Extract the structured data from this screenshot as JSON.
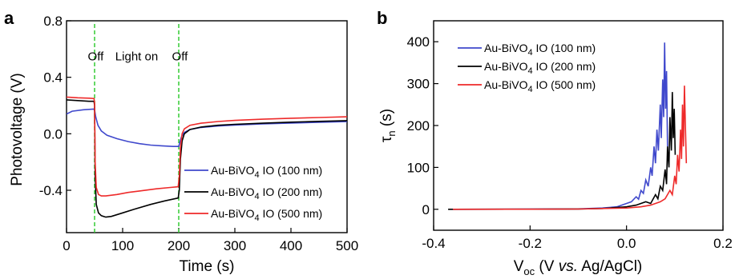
{
  "panels": {
    "a": {
      "letter": "a"
    },
    "b": {
      "letter": "b"
    }
  },
  "chart_data": [
    {
      "type": "line",
      "panel": "a",
      "xlabel": "Time (s)",
      "ylabel": "Photovoltage (V)",
      "xlim": [
        0,
        500
      ],
      "ylim": [
        -0.7,
        0.8
      ],
      "xticks": [
        0,
        100,
        200,
        300,
        400,
        500
      ],
      "yticks": [
        0.8,
        0.4,
        0.0,
        -0.4
      ],
      "ytick_labels": [
        "0.8",
        "0.4",
        "0.0",
        "-0.4"
      ],
      "annotations": [
        {
          "text": "Off",
          "x": 52,
          "y": 0.52
        },
        {
          "text": "Light on",
          "x": 125,
          "y": 0.52
        },
        {
          "text": "Off",
          "x": 202,
          "y": 0.52
        }
      ],
      "vlines": [
        {
          "x": 50,
          "color": "#33cc33",
          "style": "dashed"
        },
        {
          "x": 200,
          "color": "#33cc33",
          "style": "dashed"
        }
      ],
      "legend": {
        "placement": "lower-right"
      },
      "series": [
        {
          "name_main": "Au-BiVO",
          "name_sub": "4",
          "name_rest": " IO (100 nm)",
          "color": "#3f48cc",
          "points": [
            [
              0,
              0.14
            ],
            [
              10,
              0.16
            ],
            [
              30,
              0.17
            ],
            [
              48,
              0.175
            ],
            [
              50,
              0.17
            ],
            [
              52,
              0.12
            ],
            [
              56,
              0.06
            ],
            [
              62,
              0.02
            ],
            [
              72,
              -0.01
            ],
            [
              90,
              -0.035
            ],
            [
              110,
              -0.055
            ],
            [
              130,
              -0.07
            ],
            [
              150,
              -0.08
            ],
            [
              170,
              -0.085
            ],
            [
              190,
              -0.09
            ],
            [
              200,
              -0.09
            ],
            [
              202,
              -0.06
            ],
            [
              205,
              -0.02
            ],
            [
              210,
              0.01
            ],
            [
              220,
              0.03
            ],
            [
              240,
              0.045
            ],
            [
              270,
              0.055
            ],
            [
              300,
              0.062
            ],
            [
              350,
              0.07
            ],
            [
              400,
              0.076
            ],
            [
              450,
              0.081
            ],
            [
              500,
              0.086
            ]
          ]
        },
        {
          "name_main": "Au-BiVO",
          "name_sub": "4",
          "name_rest": " IO (200 nm)",
          "color": "#000000",
          "points": [
            [
              0,
              0.24
            ],
            [
              20,
              0.235
            ],
            [
              40,
              0.23
            ],
            [
              49,
              0.23
            ],
            [
              50,
              0.2
            ],
            [
              51,
              -0.3
            ],
            [
              53,
              -0.5
            ],
            [
              57,
              -0.56
            ],
            [
              62,
              -0.58
            ],
            [
              70,
              -0.59
            ],
            [
              80,
              -0.585
            ],
            [
              100,
              -0.56
            ],
            [
              120,
              -0.535
            ],
            [
              150,
              -0.5
            ],
            [
              175,
              -0.475
            ],
            [
              199,
              -0.455
            ],
            [
              201,
              -0.4
            ],
            [
              203,
              -0.18
            ],
            [
              206,
              -0.05
            ],
            [
              210,
              0.0
            ],
            [
              220,
              0.03
            ],
            [
              240,
              0.048
            ],
            [
              270,
              0.06
            ],
            [
              300,
              0.067
            ],
            [
              350,
              0.075
            ],
            [
              400,
              0.082
            ],
            [
              450,
              0.088
            ],
            [
              500,
              0.093
            ]
          ]
        },
        {
          "name_main": "Au-BiVO",
          "name_sub": "4",
          "name_rest": " IO (500 nm)",
          "color": "#ee2a2a",
          "points": [
            [
              0,
              0.26
            ],
            [
              20,
              0.255
            ],
            [
              40,
              0.252
            ],
            [
              49,
              0.25
            ],
            [
              50,
              0.22
            ],
            [
              51,
              -0.2
            ],
            [
              53,
              -0.38
            ],
            [
              57,
              -0.43
            ],
            [
              62,
              -0.44
            ],
            [
              70,
              -0.44
            ],
            [
              90,
              -0.43
            ],
            [
              110,
              -0.415
            ],
            [
              130,
              -0.405
            ],
            [
              160,
              -0.39
            ],
            [
              185,
              -0.38
            ],
            [
              199,
              -0.375
            ],
            [
              201,
              -0.3
            ],
            [
              203,
              -0.1
            ],
            [
              206,
              0.0
            ],
            [
              210,
              0.035
            ],
            [
              220,
              0.06
            ],
            [
              240,
              0.075
            ],
            [
              270,
              0.087
            ],
            [
              300,
              0.095
            ],
            [
              350,
              0.103
            ],
            [
              400,
              0.11
            ],
            [
              450,
              0.115
            ],
            [
              500,
              0.12
            ]
          ]
        }
      ]
    },
    {
      "type": "line",
      "panel": "b",
      "xlabel_main": "V",
      "xlabel_sub": "oc",
      "xlabel_paren_open": " (V ",
      "xlabel_italic": "vs.",
      "xlabel_rest": " Ag/AgCl)",
      "ylabel_main": "τ",
      "ylabel_sub": "n",
      "ylabel_rest": " (s)",
      "xlim": [
        -0.4,
        0.2
      ],
      "ylim": [
        -50,
        450
      ],
      "xticks": [
        -0.4,
        -0.2,
        0.0,
        0.2
      ],
      "xtick_labels": [
        "-0.4",
        "-0.2",
        "0.0",
        "0.2"
      ],
      "yticks": [
        0,
        100,
        200,
        300,
        400
      ],
      "legend": {
        "placement": "top-left"
      },
      "series": [
        {
          "name_main": "Au-BiVO",
          "name_sub": "4",
          "name_rest": " IO (100 nm)",
          "color": "#3f48cc",
          "points": [
            [
              -0.36,
              0
            ],
            [
              -0.2,
              0.3
            ],
            [
              -0.1,
              1
            ],
            [
              -0.05,
              3
            ],
            [
              -0.02,
              6
            ],
            [
              0.0,
              14
            ],
            [
              0.01,
              18
            ],
            [
              0.02,
              30
            ],
            [
              0.025,
              24
            ],
            [
              0.03,
              45
            ],
            [
              0.035,
              38
            ],
            [
              0.04,
              70
            ],
            [
              0.045,
              55
            ],
            [
              0.05,
              100
            ],
            [
              0.053,
              80
            ],
            [
              0.057,
              150
            ],
            [
              0.06,
              110
            ],
            [
              0.063,
              190
            ],
            [
              0.066,
              140
            ],
            [
              0.07,
              250
            ],
            [
              0.072,
              170
            ],
            [
              0.075,
              310
            ],
            [
              0.077,
              220
            ],
            [
              0.079,
              398
            ],
            [
              0.081,
              240
            ],
            [
              0.083,
              330
            ],
            [
              0.085,
              150
            ]
          ]
        },
        {
          "name_main": "Au-BiVO",
          "name_sub": "4",
          "name_rest": " IO (200 nm)",
          "color": "#000000",
          "points": [
            [
              -0.37,
              0
            ],
            [
              -0.2,
              0.2
            ],
            [
              -0.1,
              0.8
            ],
            [
              -0.05,
              2
            ],
            [
              0.0,
              6
            ],
            [
              0.02,
              10
            ],
            [
              0.04,
              18
            ],
            [
              0.05,
              14
            ],
            [
              0.06,
              35
            ],
            [
              0.065,
              25
            ],
            [
              0.07,
              55
            ],
            [
              0.075,
              45
            ],
            [
              0.08,
              95
            ],
            [
              0.083,
              60
            ],
            [
              0.085,
              150
            ],
            [
              0.088,
              100
            ],
            [
              0.09,
              220
            ],
            [
              0.093,
              140
            ],
            [
              0.095,
              280
            ],
            [
              0.097,
              170
            ],
            [
              0.099,
              240
            ],
            [
              0.101,
              130
            ]
          ]
        },
        {
          "name_main": "Au-BiVO",
          "name_sub": "4",
          "name_rest": " IO (500 nm)",
          "color": "#ee2a2a",
          "points": [
            [
              -0.36,
              0
            ],
            [
              -0.2,
              0.2
            ],
            [
              -0.1,
              0.6
            ],
            [
              0.0,
              3
            ],
            [
              0.03,
              6
            ],
            [
              0.05,
              10
            ],
            [
              0.07,
              18
            ],
            [
              0.08,
              25
            ],
            [
              0.09,
              45
            ],
            [
              0.095,
              35
            ],
            [
              0.1,
              80
            ],
            [
              0.103,
              60
            ],
            [
              0.106,
              130
            ],
            [
              0.109,
              90
            ],
            [
              0.112,
              190
            ],
            [
              0.114,
              120
            ],
            [
              0.116,
              250
            ],
            [
              0.118,
              150
            ],
            [
              0.12,
              295
            ],
            [
              0.122,
              200
            ],
            [
              0.124,
              110
            ]
          ]
        }
      ]
    }
  ]
}
